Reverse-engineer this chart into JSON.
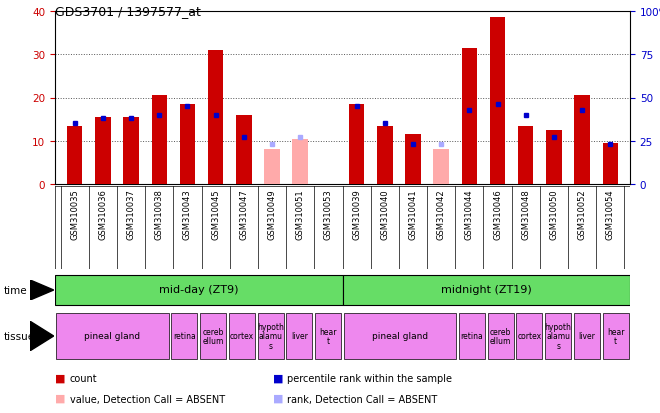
{
  "title": "GDS3701 / 1397577_at",
  "samples": [
    "GSM310035",
    "GSM310036",
    "GSM310037",
    "GSM310038",
    "GSM310043",
    "GSM310045",
    "GSM310047",
    "GSM310049",
    "GSM310051",
    "GSM310053",
    "GSM310039",
    "GSM310040",
    "GSM310041",
    "GSM310042",
    "GSM310044",
    "GSM310046",
    "GSM310048",
    "GSM310050",
    "GSM310052",
    "GSM310054"
  ],
  "count_values": [
    13.5,
    15.5,
    15.5,
    20.5,
    18.5,
    31.0,
    16.0,
    null,
    null,
    null,
    18.5,
    13.5,
    11.5,
    null,
    31.5,
    38.5,
    13.5,
    12.5,
    20.5,
    9.5
  ],
  "absent_count": [
    null,
    null,
    null,
    null,
    null,
    null,
    null,
    8.0,
    10.5,
    null,
    null,
    null,
    null,
    8.0,
    null,
    null,
    null,
    null,
    null,
    null
  ],
  "percentile_rank": [
    35,
    38,
    38,
    40,
    45,
    40,
    27,
    null,
    null,
    null,
    45,
    35,
    23,
    null,
    43,
    46,
    40,
    27,
    43,
    23
  ],
  "absent_percentile": [
    null,
    null,
    null,
    null,
    null,
    null,
    null,
    23,
    27,
    null,
    null,
    null,
    null,
    23,
    null,
    null,
    null,
    null,
    null,
    null
  ],
  "bar_color": "#cc0000",
  "rank_color": "#0000cc",
  "absent_bar_color": "#ffaaaa",
  "absent_rank_color": "#aaaaff",
  "bg_color": "#ffffff",
  "left_axis_color": "#cc0000",
  "right_axis_color": "#0000cc",
  "ylim_left": [
    0,
    40
  ],
  "ylim_right": [
    0,
    100
  ],
  "yticks_left": [
    0,
    10,
    20,
    30,
    40
  ],
  "yticks_right": [
    0,
    25,
    50,
    75,
    100
  ],
  "time_label_midday": "mid-day (ZT9)",
  "time_label_midnight": "midnight (ZT19)",
  "time_bg": "#66dd66",
  "tissue_bg": "#ee88ee",
  "xtick_bg": "#cccccc",
  "grid_color": "#555555",
  "tissue_groups": [
    {
      "label": "pineal gland",
      "start": 0,
      "end": 4
    },
    {
      "label": "retina",
      "start": 4,
      "end": 5
    },
    {
      "label": "cereb\nellum",
      "start": 5,
      "end": 6
    },
    {
      "label": "cortex",
      "start": 6,
      "end": 7
    },
    {
      "label": "hypoth\nalamu\ns",
      "start": 7,
      "end": 8
    },
    {
      "label": "liver",
      "start": 8,
      "end": 9
    },
    {
      "label": "hear\nt",
      "start": 9,
      "end": 10
    },
    {
      "label": "pineal gland",
      "start": 10,
      "end": 14
    },
    {
      "label": "retina",
      "start": 14,
      "end": 15
    },
    {
      "label": "cereb\nellum",
      "start": 15,
      "end": 16
    },
    {
      "label": "cortex",
      "start": 16,
      "end": 17
    },
    {
      "label": "hypoth\nalamu\ns",
      "start": 17,
      "end": 18
    },
    {
      "label": "liver",
      "start": 18,
      "end": 19
    },
    {
      "label": "hear\nt",
      "start": 19,
      "end": 20
    }
  ],
  "figsize": [
    6.6,
    4.14
  ],
  "dpi": 100
}
